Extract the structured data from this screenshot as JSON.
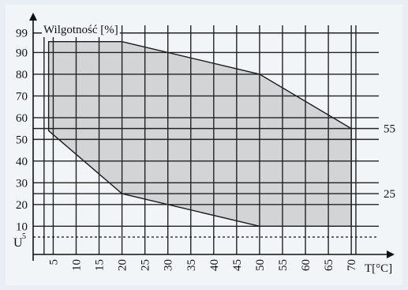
{
  "chart_data": {
    "type": "area",
    "title": "",
    "ylabel": "Wilgotność [%]",
    "xlabel": "T[°C]",
    "x_ticks": [
      5,
      10,
      15,
      20,
      25,
      30,
      35,
      40,
      45,
      50,
      55,
      60,
      65,
      70
    ],
    "y_ticks": [
      10,
      20,
      30,
      40,
      50,
      60,
      70,
      80,
      90,
      99
    ],
    "xlim": [
      2,
      76
    ],
    "ylim": [
      -3,
      104
    ],
    "extra_vertical_lines": [
      3,
      71
    ],
    "extra_horizontal_lines": [
      25,
      55
    ],
    "right_labels": [
      {
        "label": "55",
        "y": 55
      },
      {
        "label": "25",
        "y": 25
      }
    ],
    "dashed_line": {
      "label": "U",
      "superscript": "5",
      "y": 5
    },
    "region": {
      "name": "",
      "points": [
        {
          "x": 4,
          "y": 95
        },
        {
          "x": 20,
          "y": 95
        },
        {
          "x": 50,
          "y": 80
        },
        {
          "x": 70,
          "y": 55
        },
        {
          "x": 70,
          "y": 10
        },
        {
          "x": 50,
          "y": 10
        },
        {
          "x": 20,
          "y": 25
        },
        {
          "x": 4,
          "y": 54
        }
      ]
    },
    "grid": true,
    "colors": {
      "background": "#e9eef4",
      "plot_background": "#f2f5f8",
      "region_fill": "#d3d4d6",
      "grid": "#222222"
    }
  }
}
